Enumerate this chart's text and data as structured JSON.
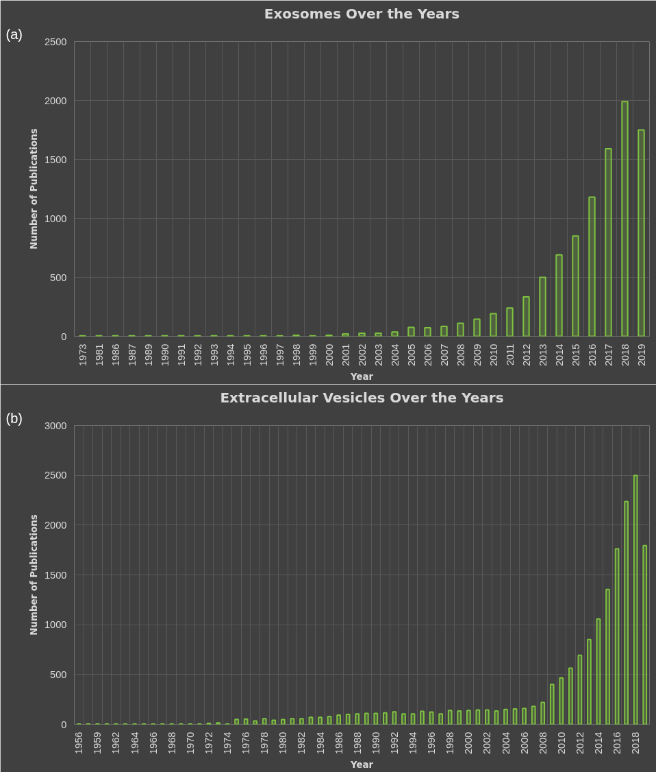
{
  "chart_data": [
    {
      "type": "bar",
      "title": "Exosomes Over the Years",
      "xlabel": "Year",
      "ylabel": "Number of Publications",
      "annotations": [
        "(a)"
      ],
      "categories": [
        "1973",
        "1981",
        "1986",
        "1987",
        "1989",
        "1990",
        "1991",
        "1992",
        "1993",
        "1994",
        "1995",
        "1996",
        "1997",
        "1998",
        "1999",
        "2000",
        "2001",
        "2002",
        "2003",
        "2004",
        "2005",
        "2006",
        "2007",
        "2008",
        "2009",
        "2010",
        "2011",
        "2012",
        "2013",
        "2014",
        "2015",
        "2016",
        "2017",
        "2018",
        "2019"
      ],
      "values": [
        5,
        5,
        5,
        5,
        5,
        5,
        5,
        5,
        5,
        5,
        5,
        5,
        5,
        8,
        5,
        8,
        20,
        26,
        26,
        36,
        75,
        72,
        85,
        110,
        146,
        192,
        240,
        335,
        500,
        690,
        850,
        1180,
        1590,
        1990,
        1750
      ],
      "color": "#7fc241",
      "ylim": [
        0,
        2500
      ],
      "yticks": [
        0,
        500,
        1000,
        1500,
        2000,
        2500
      ],
      "grid": true
    },
    {
      "type": "bar",
      "title": "Extracellular Vesicles Over the Years",
      "xlabel": "Year",
      "ylabel": "Number of Publications",
      "annotations": [
        "(b)"
      ],
      "categories": [
        "1956",
        null,
        "1959",
        null,
        "1962",
        null,
        "1964",
        null,
        "1966",
        null,
        "1968",
        null,
        "1970",
        null,
        "1972",
        null,
        "1974",
        null,
        "1976",
        null,
        "1978",
        null,
        "1980",
        null,
        "1982",
        null,
        "1984",
        null,
        "1986",
        null,
        "1988",
        null,
        "1990",
        null,
        "1992",
        null,
        "1994",
        null,
        "1996",
        null,
        "1998",
        null,
        "2000",
        null,
        "2002",
        null,
        "2004",
        null,
        "2006",
        null,
        "2008",
        null,
        "2010",
        null,
        "2012",
        null,
        "2014",
        null,
        "2016",
        null,
        "2018",
        null
      ],
      "values": [
        3,
        3,
        3,
        3,
        3,
        3,
        3,
        3,
        3,
        3,
        3,
        3,
        3,
        3,
        10,
        15,
        3,
        50,
        53,
        35,
        56,
        42,
        49,
        56,
        56,
        70,
        70,
        79,
        93,
        100,
        105,
        110,
        110,
        115,
        125,
        105,
        105,
        130,
        123,
        105,
        140,
        135,
        140,
        145,
        145,
        135,
        150,
        155,
        160,
        180,
        220,
        400,
        467,
        565,
        693,
        852,
        1058,
        1354,
        1761,
        2236,
        2497,
        1794
      ],
      "color": "#7fc241",
      "ylim": [
        0,
        3000
      ],
      "yticks": [
        0,
        500,
        1000,
        1500,
        2000,
        2500,
        3000
      ],
      "grid": true
    }
  ]
}
